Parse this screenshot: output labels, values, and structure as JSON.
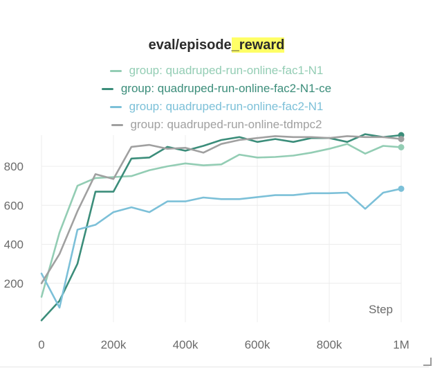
{
  "chart_data": {
    "type": "line",
    "title_prefix": "eval/episode",
    "title_highlight": "_reward",
    "xlabel": "Step",
    "xlim": [
      0,
      1000000
    ],
    "ylim": [
      0,
      960
    ],
    "x_ticks": [
      0,
      200000,
      400000,
      600000,
      800000,
      1000000
    ],
    "x_tick_labels": [
      "0",
      "200k",
      "400k",
      "600k",
      "800k",
      "1M"
    ],
    "y_ticks": [
      200,
      400,
      600,
      800
    ],
    "y_tick_labels": [
      "200",
      "400",
      "600",
      "800"
    ],
    "grid": true,
    "legend_position": "top",
    "series": [
      {
        "name": "group: quadruped-run-online-fac1-N1",
        "color": "#93cdb4",
        "end_marker": true,
        "x": [
          0,
          50000,
          100000,
          150000,
          200000,
          250000,
          300000,
          350000,
          400000,
          450000,
          500000,
          550000,
          600000,
          650000,
          700000,
          750000,
          800000,
          850000,
          900000,
          950000,
          1000000
        ],
        "y": [
          130,
          460,
          700,
          740,
          745,
          750,
          780,
          800,
          815,
          805,
          810,
          860,
          845,
          848,
          855,
          870,
          890,
          915,
          865,
          905,
          898
        ]
      },
      {
        "name": "group: quadruped-run-online-fac2-N1-ce",
        "color": "#3b8d7a",
        "end_marker": true,
        "x": [
          0,
          50000,
          100000,
          150000,
          200000,
          250000,
          300000,
          350000,
          400000,
          450000,
          500000,
          550000,
          600000,
          650000,
          700000,
          750000,
          800000,
          850000,
          900000,
          950000,
          1000000
        ],
        "y": [
          10,
          110,
          300,
          670,
          670,
          840,
          845,
          900,
          880,
          905,
          935,
          950,
          925,
          940,
          925,
          945,
          945,
          925,
          965,
          950,
          960
        ]
      },
      {
        "name": "group: quadruped-run-online-fac2-N1",
        "color": "#7cc0d8",
        "end_marker": true,
        "x": [
          0,
          50000,
          100000,
          150000,
          200000,
          250000,
          300000,
          350000,
          400000,
          450000,
          500000,
          550000,
          600000,
          650000,
          700000,
          750000,
          800000,
          850000,
          900000,
          950000,
          1000000
        ],
        "y": [
          250,
          75,
          475,
          500,
          565,
          590,
          565,
          620,
          620,
          640,
          632,
          632,
          642,
          652,
          652,
          662,
          662,
          665,
          582,
          665,
          685
        ]
      },
      {
        "name": "group: quadruped-run-online-tdmpc2",
        "color": "#a0a0a0",
        "end_marker": true,
        "x": [
          0,
          50000,
          100000,
          150000,
          200000,
          250000,
          300000,
          350000,
          400000,
          450000,
          500000,
          550000,
          600000,
          650000,
          700000,
          750000,
          800000,
          850000,
          900000,
          950000,
          1000000
        ],
        "y": [
          200,
          350,
          570,
          760,
          735,
          900,
          910,
          890,
          895,
          870,
          915,
          935,
          945,
          955,
          950,
          950,
          945,
          955,
          950,
          950,
          940
        ]
      }
    ]
  }
}
